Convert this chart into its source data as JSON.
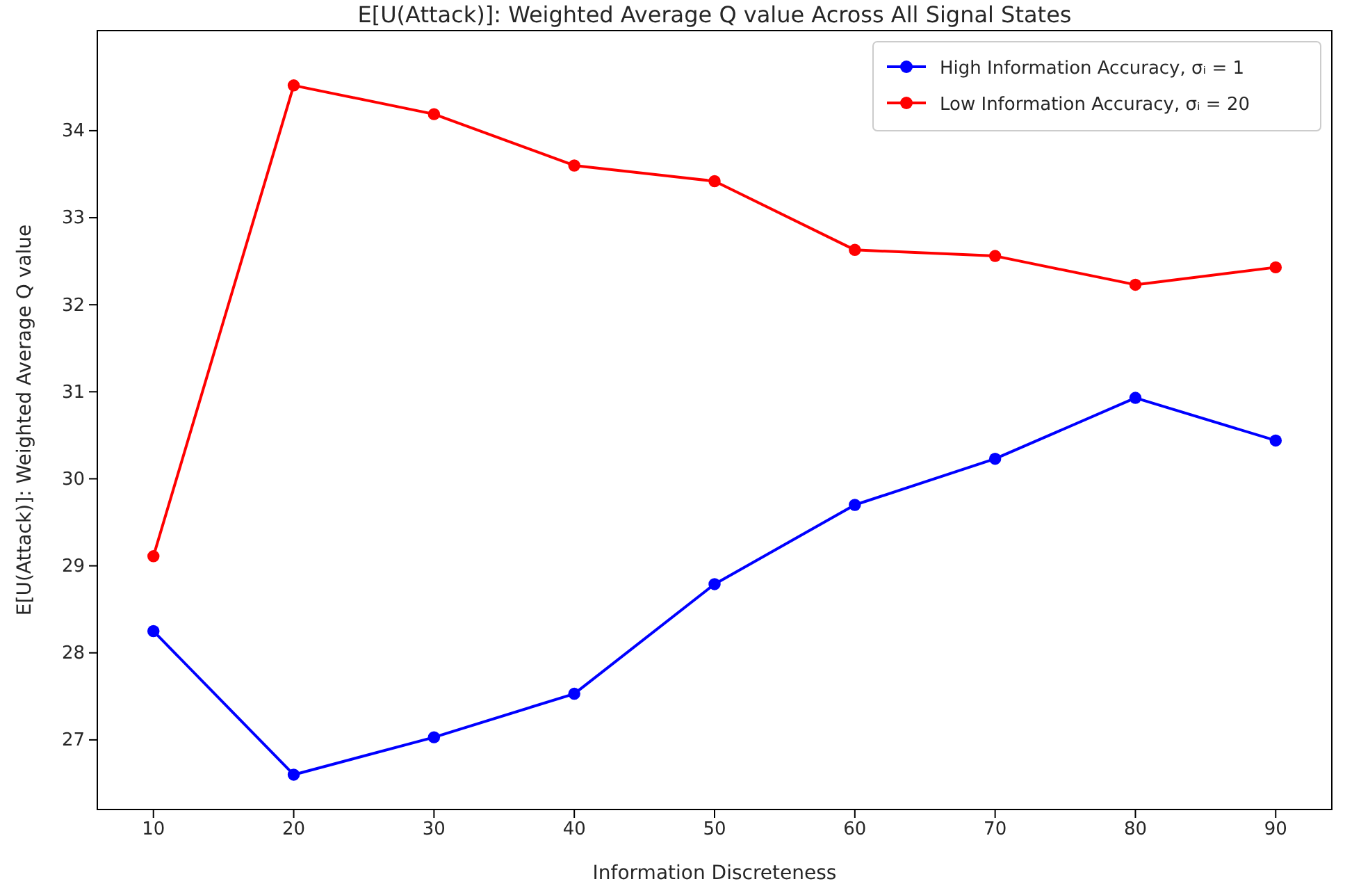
{
  "chart_data": {
    "type": "line",
    "title": "E[U(Attack)]: Weighted Average Q value Across All Signal States",
    "xlabel": "Information Discreteness",
    "ylabel": "E[U(Attack)]: Weighted Average Q value",
    "x": [
      10,
      20,
      30,
      40,
      50,
      60,
      70,
      80,
      90
    ],
    "series": [
      {
        "name": "High Information Accuracy, σᵢ = 1",
        "color": "#0000ff",
        "values": [
          28.25,
          26.6,
          27.03,
          27.53,
          28.79,
          29.7,
          30.23,
          30.93,
          30.44
        ]
      },
      {
        "name": "Low Information Accuracy, σᵢ = 20",
        "color": "#ff0000",
        "values": [
          29.11,
          34.52,
          34.19,
          33.6,
          33.42,
          32.63,
          32.56,
          32.23,
          32.43
        ]
      }
    ],
    "xlim": [
      6,
      94
    ],
    "xticks": [
      10,
      20,
      30,
      40,
      50,
      60,
      70,
      80,
      90
    ],
    "ylim": [
      26.2,
      35.15
    ],
    "yticks": [
      27,
      28,
      29,
      30,
      31,
      32,
      33,
      34
    ],
    "legend": "top right",
    "marker": "circle",
    "line_style": "solid",
    "grid": false
  }
}
